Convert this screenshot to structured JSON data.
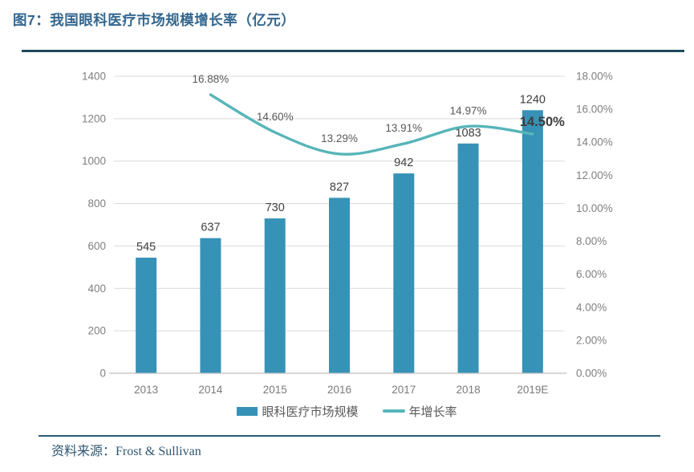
{
  "page": {
    "title": "图7：我国眼科医疗市场规模增长率（亿元）",
    "source_label": "资料来源：",
    "source_text": "Frost & Sullivan"
  },
  "colors": {
    "bar": "#3792b7",
    "line": "#57b5b9",
    "title": "#34678f",
    "top_rule": "#1e4a5d",
    "footer_rule": "#2a5a74",
    "source_text": "#2f5570",
    "gridline": "#d9d9d9",
    "axis_line": "#bfbfbf",
    "tick_label": "#7f7f7f",
    "category_label": "#7a7a7a",
    "bar_label": "#3f3f3f",
    "line_label": "#595959",
    "emphasis_label": "#3d3d3d",
    "legend_text": "#595959"
  },
  "legend": [
    {
      "label": "眼科医疗市场规模",
      "swatch": "bar"
    },
    {
      "label": "年增长率",
      "swatch": "line"
    }
  ],
  "chart_data": {
    "type": "bar+line combo",
    "title": "图7：我国眼科医疗市场规模增长率（亿元）",
    "categories": [
      "2013",
      "2014",
      "2015",
      "2016",
      "2017",
      "2018",
      "2019E"
    ],
    "series": [
      {
        "name": "眼科医疗市场规模",
        "type": "bar",
        "axis": "left",
        "values": [
          545,
          637,
          730,
          827,
          942,
          1083,
          1240
        ],
        "labels": [
          "545",
          "637",
          "730",
          "827",
          "942",
          "1083",
          "1240"
        ]
      },
      {
        "name": "年增长率",
        "type": "line",
        "axis": "right",
        "values": [
          null,
          16.88,
          14.6,
          13.29,
          13.91,
          14.97,
          14.5
        ],
        "labels": [
          "",
          "16.88%",
          "14.60%",
          "13.29%",
          "13.91%",
          "14.97%",
          "14.50%"
        ],
        "emphasized_index": 6
      }
    ],
    "left_axis": {
      "min": 0,
      "max": 1400,
      "step": 200,
      "tick_labels": [
        "0",
        "200",
        "400",
        "600",
        "800",
        "1000",
        "1200",
        "1400"
      ]
    },
    "right_axis": {
      "min": 0,
      "max": 18,
      "step": 2,
      "tick_labels": [
        "0.00%",
        "2.00%",
        "4.00%",
        "6.00%",
        "8.00%",
        "10.00%",
        "12.00%",
        "14.00%",
        "16.00%",
        "18.00%"
      ]
    },
    "grid": "horizontal",
    "legend_position": "bottom",
    "source": "Frost & Sullivan"
  }
}
